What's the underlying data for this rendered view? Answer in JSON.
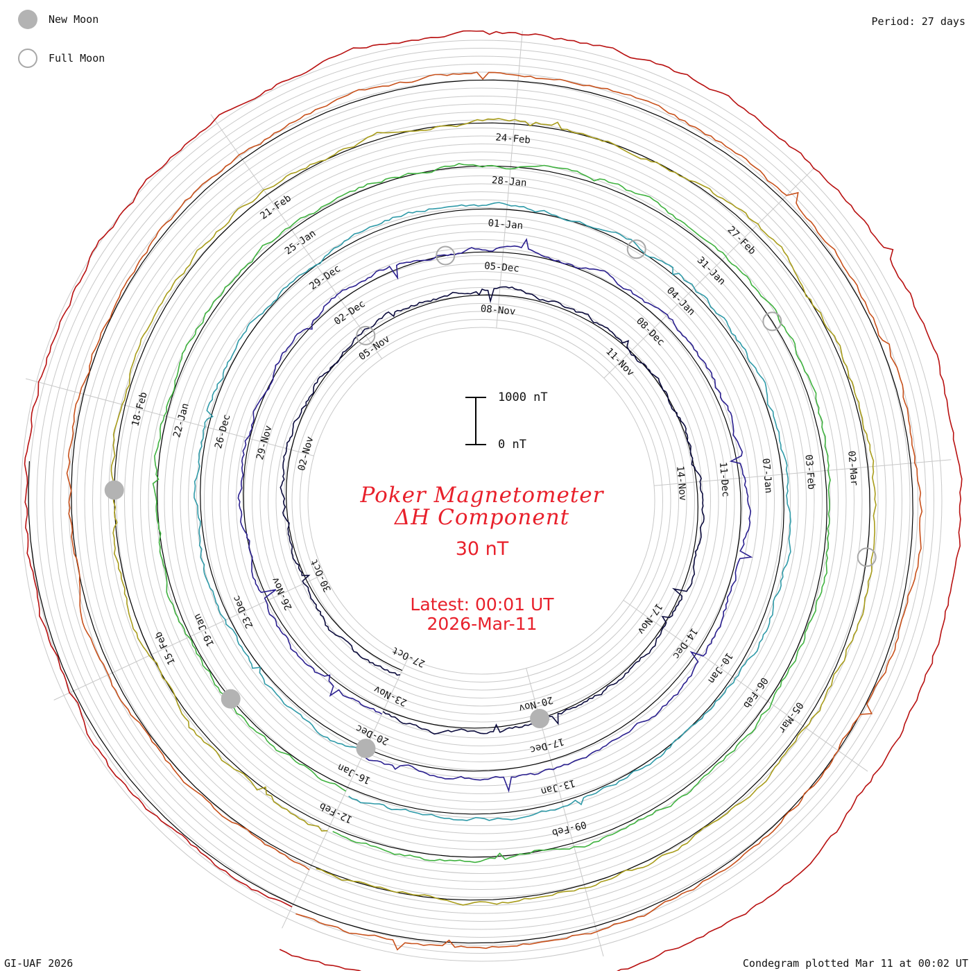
{
  "legend": {
    "new_moon": "New Moon",
    "full_moon": "Full Moon"
  },
  "period": "Period: 27 days",
  "footer_left": "GI-UAF 2026",
  "footer_right": "Condegram plotted Mar 11 at 00:02 UT",
  "title": {
    "line1": "Poker Magnetometer",
    "line2": "ΔH Component",
    "scale": "30 nT"
  },
  "latest": {
    "line1": "Latest: 00:01 UT",
    "line2": "2026-Mar-11"
  },
  "scale_bar": {
    "top": "1000 nT",
    "bottom": "0 nT"
  },
  "colors": {
    "text": "#e8202b",
    "grid": "#c8c8c8",
    "moon_fill": "#b3b3b3"
  },
  "chart_data": {
    "type": "spiral-condegram",
    "title": "Poker Magnetometer ΔH Component",
    "period_days": 27,
    "start_date": "2025-10-27",
    "end_date": "2026-03-11",
    "units": "nT",
    "scale_bar_nT": [
      0,
      1000
    ],
    "rotations": [
      {
        "name": "rotation-1",
        "start": "2025-10-27",
        "color": "#0a0a3c",
        "activity": 0.55
      },
      {
        "name": "rotation-2",
        "start": "2025-11-23",
        "color": "#2a1f8f",
        "activity": 0.6
      },
      {
        "name": "rotation-3",
        "start": "2025-12-20",
        "color": "#2f9aa8",
        "activity": 0.4
      },
      {
        "name": "rotation-4",
        "start": "2026-01-16",
        "color": "#3fb23f",
        "activity": 0.35
      },
      {
        "name": "rotation-5",
        "start": "2026-02-12",
        "color": "#a89c1a",
        "activity": 0.3
      },
      {
        "name": "rotation-6",
        "start": "2026-03-11",
        "color": "#c8501a",
        "activity": 0.45
      },
      {
        "name": "rotation-7",
        "start": "2026-03-11",
        "color": "#b81010",
        "activity": 0.35
      }
    ],
    "date_labels": [
      [
        "27-Oct",
        "30-Oct",
        "02-Nov",
        "05-Nov",
        "08-Nov",
        "11-Nov",
        "14-Nov",
        "17-Nov",
        "20-Nov"
      ],
      [
        "23-Nov",
        "26-Nov",
        "29-Nov",
        "02-Dec",
        "05-Dec",
        "08-Dec",
        "11-Dec",
        "14-Dec",
        "17-Dec"
      ],
      [
        "20-Dec",
        "23-Dec",
        "26-Dec",
        "29-Dec",
        "01-Jan",
        "04-Jan",
        "07-Jan",
        "10-Jan",
        "13-Jan"
      ],
      [
        "16-Jan",
        "19-Jan",
        "22-Jan",
        "25-Jan",
        "28-Jan",
        "31-Jan",
        "03-Feb",
        "06-Feb",
        "09-Feb"
      ],
      [
        "12-Feb",
        "15-Feb",
        "18-Feb",
        "21-Feb",
        "24-Feb",
        "27-Feb",
        "02-Mar",
        "05-Mar"
      ]
    ],
    "new_moons": [
      "2025-11-20",
      "2025-12-20",
      "2026-01-18",
      "2026-02-17"
    ],
    "full_moons": [
      "2025-11-05",
      "2025-12-04",
      "2026-01-03",
      "2026-02-01",
      "2026-03-03"
    ]
  }
}
